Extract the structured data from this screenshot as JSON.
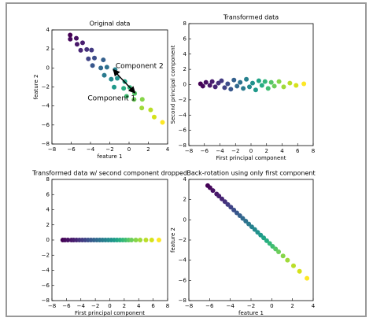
{
  "chart_data": [
    {
      "type": "scatter",
      "title": "Original data",
      "xlabel": "feature 1",
      "ylabel": "feature 2",
      "xlim": [
        -8,
        4
      ],
      "ylim": [
        -8,
        4
      ],
      "xticks": [
        {
          "value": -8,
          "label": "−8"
        },
        {
          "value": -6,
          "label": "−6"
        },
        {
          "value": -4,
          "label": "−4"
        },
        {
          "value": -2,
          "label": "−2"
        },
        0,
        2,
        4
      ],
      "yticks": [
        {
          "value": -8,
          "label": "−8"
        },
        {
          "value": -6,
          "label": "−6"
        },
        {
          "value": -4,
          "label": "−4"
        },
        {
          "value": -2,
          "label": "−2"
        },
        0,
        2,
        4
      ],
      "x": [
        -6.11,
        -6.1,
        -5.47,
        -5.39,
        -4.82,
        -5.02,
        -4.39,
        -3.89,
        -4.22,
        -3.59,
        -3.79,
        -2.67,
        -2.93,
        -2.3,
        -2.57,
        -1.45,
        -1.85,
        -1.22,
        -1.55,
        -0.44,
        -0.56,
        0.07,
        -0.26,
        0.58,
        0.52,
        1.37,
        1.32,
        2.24,
        2.61,
        3.47
      ],
      "y": [
        3.46,
        3.03,
        3.12,
        2.49,
        2.64,
        1.86,
        1.94,
        1.88,
        0.96,
        1.04,
        0.26,
        0.85,
        0.0,
        0.08,
        -0.77,
        -0.18,
        -1.18,
        -1.09,
        -2.02,
        -1.43,
        -2.14,
        -2.05,
        -2.98,
        -2.68,
        -3.31,
        -3.3,
        -4.21,
        -4.41,
        -5.17,
        -5.72
      ],
      "colors": [
        "#440154",
        "#46085c",
        "#471063",
        "#481769",
        "#481d6f",
        "#472575",
        "#45307b",
        "#433a82",
        "#404386",
        "#3c4d8a",
        "#38578c",
        "#34608d",
        "#31698e",
        "#2d718e",
        "#2a7a8e",
        "#27818e",
        "#24898e",
        "#21918c",
        "#1f998a",
        "#20a386",
        "#26ad81",
        "#32b67a",
        "#40bd72",
        "#55c667",
        "#6ccd5a",
        "#86d549",
        "#a0da39",
        "#bade28",
        "#d5e21a",
        "#fde725"
      ],
      "annotations": [
        {
          "text": "Component 2",
          "x": -1.4,
          "y": 0.2,
          "arrow_from": [
            -1.0,
            -0.9
          ],
          "arrow_to": [
            -1.6,
            -0.2
          ]
        },
        {
          "text": "Component 1",
          "x": -4.3,
          "y": -3.2,
          "arrow_from": [
            -1.0,
            -0.9
          ],
          "arrow_to": [
            0.6,
            -2.6
          ]
        }
      ]
    },
    {
      "type": "scatter",
      "title": "Transformed data",
      "xlabel": "First principal component",
      "ylabel": "Second principal component",
      "xlim": [
        -8,
        8
      ],
      "ylim": [
        -8,
        8
      ],
      "xticks": [
        {
          "value": -8,
          "label": "−8"
        },
        {
          "value": -6,
          "label": "−6"
        },
        {
          "value": -4,
          "label": "−4"
        },
        {
          "value": -2,
          "label": "−2"
        },
        0,
        2,
        4,
        6,
        8
      ],
      "yticks": [
        {
          "value": -8,
          "label": "−8"
        },
        {
          "value": -6,
          "label": "−6"
        },
        {
          "value": -4,
          "label": "−4"
        },
        {
          "value": -2,
          "label": "−2"
        },
        0,
        2,
        4,
        6,
        8
      ],
      "x": [
        -6.5,
        -6.2,
        -5.8,
        -5.3,
        -5,
        -4.6,
        -4.2,
        -3.8,
        -3.4,
        -3,
        -2.6,
        -2.2,
        -1.8,
        -1.4,
        -1,
        -0.6,
        -0.2,
        0.2,
        0.6,
        1,
        1.4,
        1.8,
        2.2,
        2.6,
        3,
        3.6,
        4.2,
        5,
        5.8,
        6.8
      ],
      "y": [
        0.1,
        -0.2,
        0.3,
        -0.1,
        0.4,
        -0.3,
        0.2,
        0.5,
        -0.4,
        0.1,
        -0.6,
        0.6,
        -0.2,
        0.3,
        -0.5,
        0.7,
        -0.3,
        0.2,
        -0.7,
        0.5,
        -0.1,
        0.4,
        -0.5,
        0.3,
        -0.2,
        0.4,
        -0.3,
        0.2,
        -0.1,
        0.1
      ],
      "colors": [
        "#440154",
        "#46085c",
        "#471063",
        "#481769",
        "#481d6f",
        "#472575",
        "#45307b",
        "#433a82",
        "#404386",
        "#3c4d8a",
        "#38578c",
        "#34608d",
        "#31698e",
        "#2d718e",
        "#2a7a8e",
        "#27818e",
        "#24898e",
        "#21918c",
        "#1f998a",
        "#20a386",
        "#26ad81",
        "#32b67a",
        "#40bd72",
        "#55c667",
        "#6ccd5a",
        "#86d549",
        "#a0da39",
        "#bade28",
        "#d5e21a",
        "#fde725"
      ]
    },
    {
      "type": "scatter",
      "title": "Transformed data w/ second component dropped",
      "xlabel": "First principal component",
      "xlim": [
        -8,
        8
      ],
      "ylim": [
        -8,
        8
      ],
      "xticks": [
        {
          "value": -8,
          "label": "−8"
        },
        {
          "value": -6,
          "label": "−6"
        },
        {
          "value": -4,
          "label": "−4"
        },
        {
          "value": -2,
          "label": "−2"
        },
        0,
        2,
        4,
        6,
        8
      ],
      "yticks": [
        {
          "value": -8,
          "label": "−8"
        },
        {
          "value": -6,
          "label": "−6"
        },
        {
          "value": -4,
          "label": "−4"
        },
        {
          "value": -2,
          "label": "−2"
        },
        0,
        2,
        4,
        6,
        8
      ],
      "x": [
        -6.5,
        -6.2,
        -5.8,
        -5.3,
        -5,
        -4.6,
        -4.2,
        -3.8,
        -3.4,
        -3,
        -2.6,
        -2.2,
        -1.8,
        -1.4,
        -1,
        -0.6,
        -0.2,
        0.2,
        0.6,
        1,
        1.4,
        1.8,
        2.2,
        2.6,
        3,
        3.6,
        4.2,
        5,
        5.8,
        6.8
      ],
      "y": [
        0,
        0,
        0,
        0,
        0,
        0,
        0,
        0,
        0,
        0,
        0,
        0,
        0,
        0,
        0,
        0,
        0,
        0,
        0,
        0,
        0,
        0,
        0,
        0,
        0,
        0,
        0,
        0,
        0,
        0
      ],
      "colors": [
        "#440154",
        "#46085c",
        "#471063",
        "#481769",
        "#481d6f",
        "#472575",
        "#45307b",
        "#433a82",
        "#404386",
        "#3c4d8a",
        "#38578c",
        "#34608d",
        "#31698e",
        "#2d718e",
        "#2a7a8e",
        "#27818e",
        "#24898e",
        "#21918c",
        "#1f998a",
        "#20a386",
        "#26ad81",
        "#32b67a",
        "#40bd72",
        "#55c667",
        "#6ccd5a",
        "#86d549",
        "#a0da39",
        "#bade28",
        "#d5e21a",
        "#fde725"
      ]
    },
    {
      "type": "scatter",
      "title": "Back-rotation using only first component",
      "xlabel": "feature 1",
      "ylabel": "feature 2",
      "xlim": [
        -8,
        4
      ],
      "ylim": [
        -8,
        4
      ],
      "xticks": [
        {
          "value": -8,
          "label": "−8"
        },
        {
          "value": -6,
          "label": "−6"
        },
        {
          "value": -4,
          "label": "−4"
        },
        {
          "value": -2,
          "label": "−2"
        },
        0,
        2,
        4
      ],
      "yticks": [
        {
          "value": -8,
          "label": "−8"
        },
        {
          "value": -6,
          "label": "−6"
        },
        {
          "value": -4,
          "label": "−4"
        },
        {
          "value": -2,
          "label": "−2"
        },
        0,
        2,
        4
      ],
      "x": [
        -6.18,
        -5.96,
        -5.68,
        -5.32,
        -5.1,
        -4.81,
        -4.52,
        -4.24,
        -3.95,
        -3.66,
        -3.37,
        -3.08,
        -2.8,
        -2.51,
        -2.22,
        -1.93,
        -1.64,
        -1.36,
        -1.07,
        -0.78,
        -0.49,
        -0.2,
        0.08,
        0.37,
        0.66,
        1.09,
        1.52,
        2.1,
        2.68,
        3.4
      ],
      "y": [
        3.39,
        3.18,
        2.9,
        2.56,
        2.35,
        2.07,
        1.8,
        1.52,
        1.25,
        0.97,
        0.69,
        0.42,
        0.14,
        -0.13,
        -0.41,
        -0.69,
        -0.96,
        -1.24,
        -1.51,
        -1.79,
        -2.07,
        -2.34,
        -2.62,
        -2.89,
        -3.17,
        -3.58,
        -4.0,
        -4.55,
        -5.1,
        -5.79
      ],
      "colors": [
        "#440154",
        "#46085c",
        "#471063",
        "#481769",
        "#481d6f",
        "#472575",
        "#45307b",
        "#433a82",
        "#404386",
        "#3c4d8a",
        "#38578c",
        "#34608d",
        "#31698e",
        "#2d718e",
        "#2a7a8e",
        "#27818e",
        "#24898e",
        "#21918c",
        "#1f998a",
        "#20a386",
        "#26ad81",
        "#32b67a",
        "#40bd72",
        "#55c667",
        "#6ccd5a",
        "#86d549",
        "#a0da39",
        "#bade28",
        "#d5e21a",
        "#fde725"
      ]
    }
  ]
}
